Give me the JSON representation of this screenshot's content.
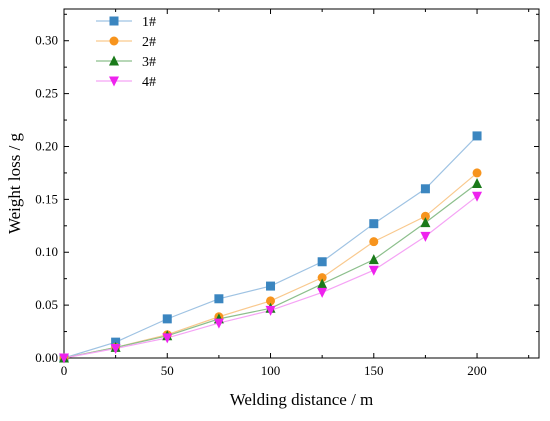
{
  "chart_data": {
    "type": "line",
    "title": "",
    "xlabel": "Welding distance / m",
    "ylabel": "Weight loss / g",
    "xlim": [
      0,
      230
    ],
    "ylim": [
      0,
      0.33
    ],
    "xticks": [
      0,
      50,
      100,
      150,
      200
    ],
    "yticks": [
      0.0,
      0.05,
      0.1,
      0.15,
      0.2,
      0.25,
      0.3
    ],
    "ytick_labels": [
      "0.00",
      "0.05",
      "0.10",
      "0.15",
      "0.20",
      "0.25",
      "0.30"
    ],
    "xtick_labels": [
      "0",
      "50",
      "100",
      "150",
      "200"
    ],
    "legend_position": "top-left",
    "grid": false,
    "x": [
      0,
      25,
      50,
      75,
      100,
      125,
      150,
      175,
      200
    ],
    "series": [
      {
        "name": "1#",
        "marker": "square",
        "color": "#3b86c0",
        "line_color": "#9fc3e3",
        "values": [
          0,
          0.015,
          0.037,
          0.056,
          0.068,
          0.091,
          0.127,
          0.16,
          0.21
        ]
      },
      {
        "name": "2#",
        "marker": "circle",
        "color": "#f7941d",
        "line_color": "#f9c98e",
        "values": [
          0,
          0.01,
          0.022,
          0.039,
          0.054,
          0.076,
          0.11,
          0.134,
          0.175
        ]
      },
      {
        "name": "3#",
        "marker": "triangle-up",
        "color": "#1a7a1a",
        "line_color": "#8cbf8c",
        "values": [
          0,
          0.01,
          0.021,
          0.037,
          0.047,
          0.07,
          0.093,
          0.128,
          0.165
        ]
      },
      {
        "name": "4#",
        "marker": "triangle-down",
        "color": "#ee22ee",
        "line_color": "#f5a3f5",
        "values": [
          0,
          0.009,
          0.019,
          0.033,
          0.045,
          0.062,
          0.083,
          0.115,
          0.153
        ]
      }
    ]
  }
}
